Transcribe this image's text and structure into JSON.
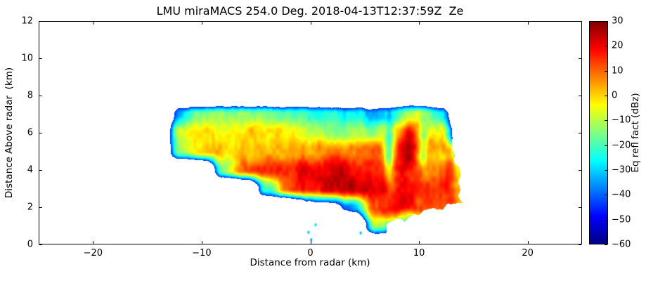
{
  "title": "LMU miraMACS 254.0 Deg. 2018-04-13T12:37:59Z  Ze",
  "colors": {
    "background": "#ffffff",
    "frame": "#000000",
    "text": "#000000"
  },
  "axes": {
    "x": {
      "label": "Distance from radar (km)",
      "min": -25,
      "max": 25,
      "ticks": [
        {
          "v": -20,
          "label": "−20"
        },
        {
          "v": -10,
          "label": "−10"
        },
        {
          "v": 0,
          "label": "0"
        },
        {
          "v": 10,
          "label": "10"
        },
        {
          "v": 20,
          "label": "20"
        }
      ]
    },
    "y": {
      "label": "Distance Above radar  (km)",
      "min": 0,
      "max": 12,
      "ticks": [
        {
          "v": 0,
          "label": "0"
        },
        {
          "v": 2,
          "label": "2"
        },
        {
          "v": 4,
          "label": "4"
        },
        {
          "v": 6,
          "label": "6"
        },
        {
          "v": 8,
          "label": "8"
        },
        {
          "v": 10,
          "label": "10"
        },
        {
          "v": 12,
          "label": "12"
        }
      ]
    }
  },
  "colorbar": {
    "label": "Eq refl fact (dBz)",
    "min": -60,
    "max": 30,
    "colormap": "jet",
    "ticks": [
      {
        "v": 30,
        "label": "30"
      },
      {
        "v": 20,
        "label": "20"
      },
      {
        "v": 10,
        "label": "10"
      },
      {
        "v": 0,
        "label": "0"
      },
      {
        "v": -10,
        "label": "−10"
      },
      {
        "v": -20,
        "label": "−20"
      },
      {
        "v": -30,
        "label": "−30"
      },
      {
        "v": -40,
        "label": "−40"
      },
      {
        "v": -50,
        "label": "−50"
      },
      {
        "v": -60,
        "label": "−60"
      }
    ]
  },
  "chart_data": {
    "type": "heatmap",
    "title": "LMU miraMACS 254.0 Deg. 2018-04-13T12:37:59Z  Ze",
    "xlabel": "Distance from radar (km)",
    "ylabel": "Distance Above radar  (km)",
    "xlim": [
      -25,
      25
    ],
    "ylim": [
      0,
      12
    ],
    "colormap": "jet",
    "value_label": "Eq refl fact (dBz)",
    "value_range": [
      -60,
      30
    ],
    "threshold_dbz": -45,
    "grid": {
      "x0": -14,
      "dx": 2,
      "y0": 0,
      "dy": 1,
      "values_dbz": [
        [
          null,
          null,
          null,
          null,
          null,
          null,
          null,
          null,
          null,
          null,
          null,
          null,
          null,
          null,
          null,
          null
        ],
        [
          null,
          null,
          null,
          null,
          null,
          null,
          null,
          null,
          null,
          null,
          -8,
          -20,
          -30,
          -40,
          null,
          null
        ],
        [
          null,
          null,
          null,
          null,
          null,
          null,
          null,
          -60,
          -55,
          -35,
          15,
          18,
          14,
          10,
          0,
          null
        ],
        [
          null,
          null,
          null,
          null,
          null,
          -20,
          12,
          18,
          22,
          24,
          22,
          18,
          16,
          14,
          5,
          null
        ],
        [
          null,
          null,
          null,
          -15,
          10,
          14,
          16,
          18,
          20,
          18,
          16,
          20,
          14,
          8,
          -5,
          null
        ],
        [
          null,
          -10,
          0,
          2,
          3,
          2,
          1,
          3,
          6,
          8,
          10,
          14,
          12,
          3,
          -30,
          null
        ],
        [
          null,
          -8,
          -3,
          -1,
          -1,
          -3,
          -5,
          -8,
          -12,
          -14,
          -12,
          4,
          8,
          -4,
          null,
          null
        ],
        [
          null,
          -30,
          -15,
          -10,
          -10,
          -14,
          -18,
          -20,
          -24,
          -27,
          -30,
          -18,
          -8,
          -28,
          null,
          null
        ],
        [
          null,
          null,
          null,
          null,
          null,
          null,
          null,
          null,
          null,
          null,
          null,
          null,
          null,
          null,
          null,
          null
        ]
      ]
    },
    "features": [
      {
        "x": 7.3,
        "y": 5.0,
        "rx": 0.5,
        "ry": 1.7,
        "delta": -30
      },
      {
        "x": 10.4,
        "y": 5.3,
        "rx": 0.45,
        "ry": 1.4,
        "delta": -22
      },
      {
        "x": 9.0,
        "y": 5.5,
        "rx": 0.6,
        "ry": 1.3,
        "delta": 14
      },
      {
        "x": 12.9,
        "y": 4.5,
        "rx": 0.45,
        "ry": 1.8,
        "delta": 12
      },
      {
        "x": 2.5,
        "y": 3.4,
        "rx": 2.4,
        "ry": 0.9,
        "delta": 5
      }
    ],
    "sector_edge": {
      "x_ref": 13.0,
      "y_ref": 6.5,
      "slope": 0.22
    },
    "bottom_edge": {
      "x_start": 7.0,
      "y_start": 1.05,
      "slope": 0.186
    },
    "specks": [
      {
        "x": -0.2,
        "y": 0.65,
        "dbz": -30
      },
      {
        "x": 0.05,
        "y": 0.25,
        "dbz": -33
      },
      {
        "x": 0.45,
        "y": 1.05,
        "dbz": -28
      },
      {
        "x": 4.6,
        "y": 0.62,
        "dbz": -31
      }
    ]
  }
}
